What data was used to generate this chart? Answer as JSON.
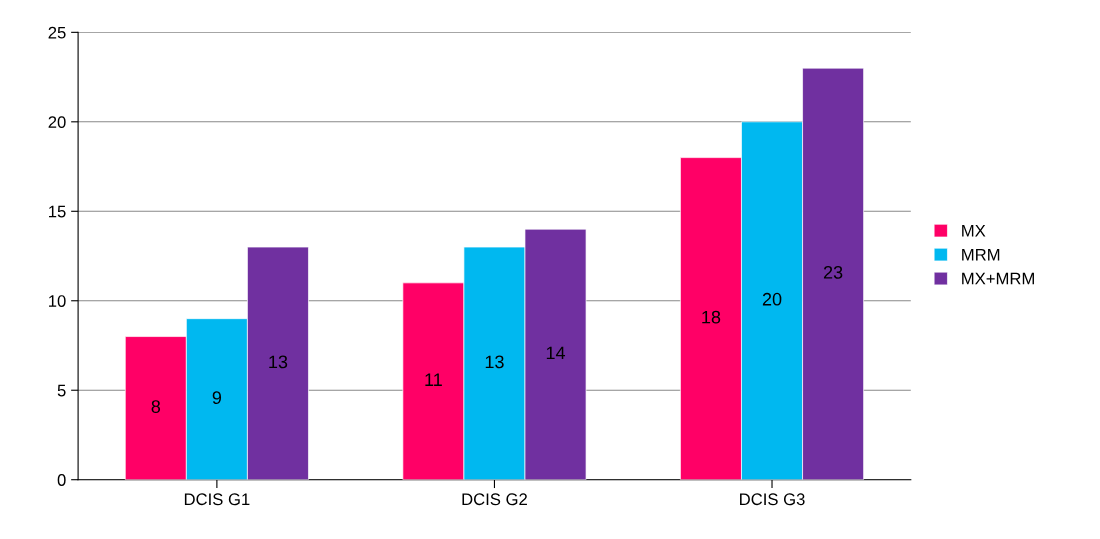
{
  "chart_data": {
    "type": "bar",
    "categories": [
      "DCIS G1",
      "DCIS G2",
      "DCIS G3"
    ],
    "series": [
      {
        "name": "MX",
        "color": "#ff0066",
        "values": [
          8,
          11,
          18
        ]
      },
      {
        "name": "MRM",
        "color": "#00b8f0",
        "values": [
          9,
          13,
          20
        ]
      },
      {
        "name": "MX+MRM",
        "color": "#7030a0",
        "values": [
          13,
          14,
          23
        ]
      }
    ],
    "ylim": [
      0,
      25
    ],
    "yticks": [
      0,
      5,
      10,
      15,
      20,
      25
    ],
    "grid": "y",
    "legend": "right",
    "data_labels": true
  }
}
